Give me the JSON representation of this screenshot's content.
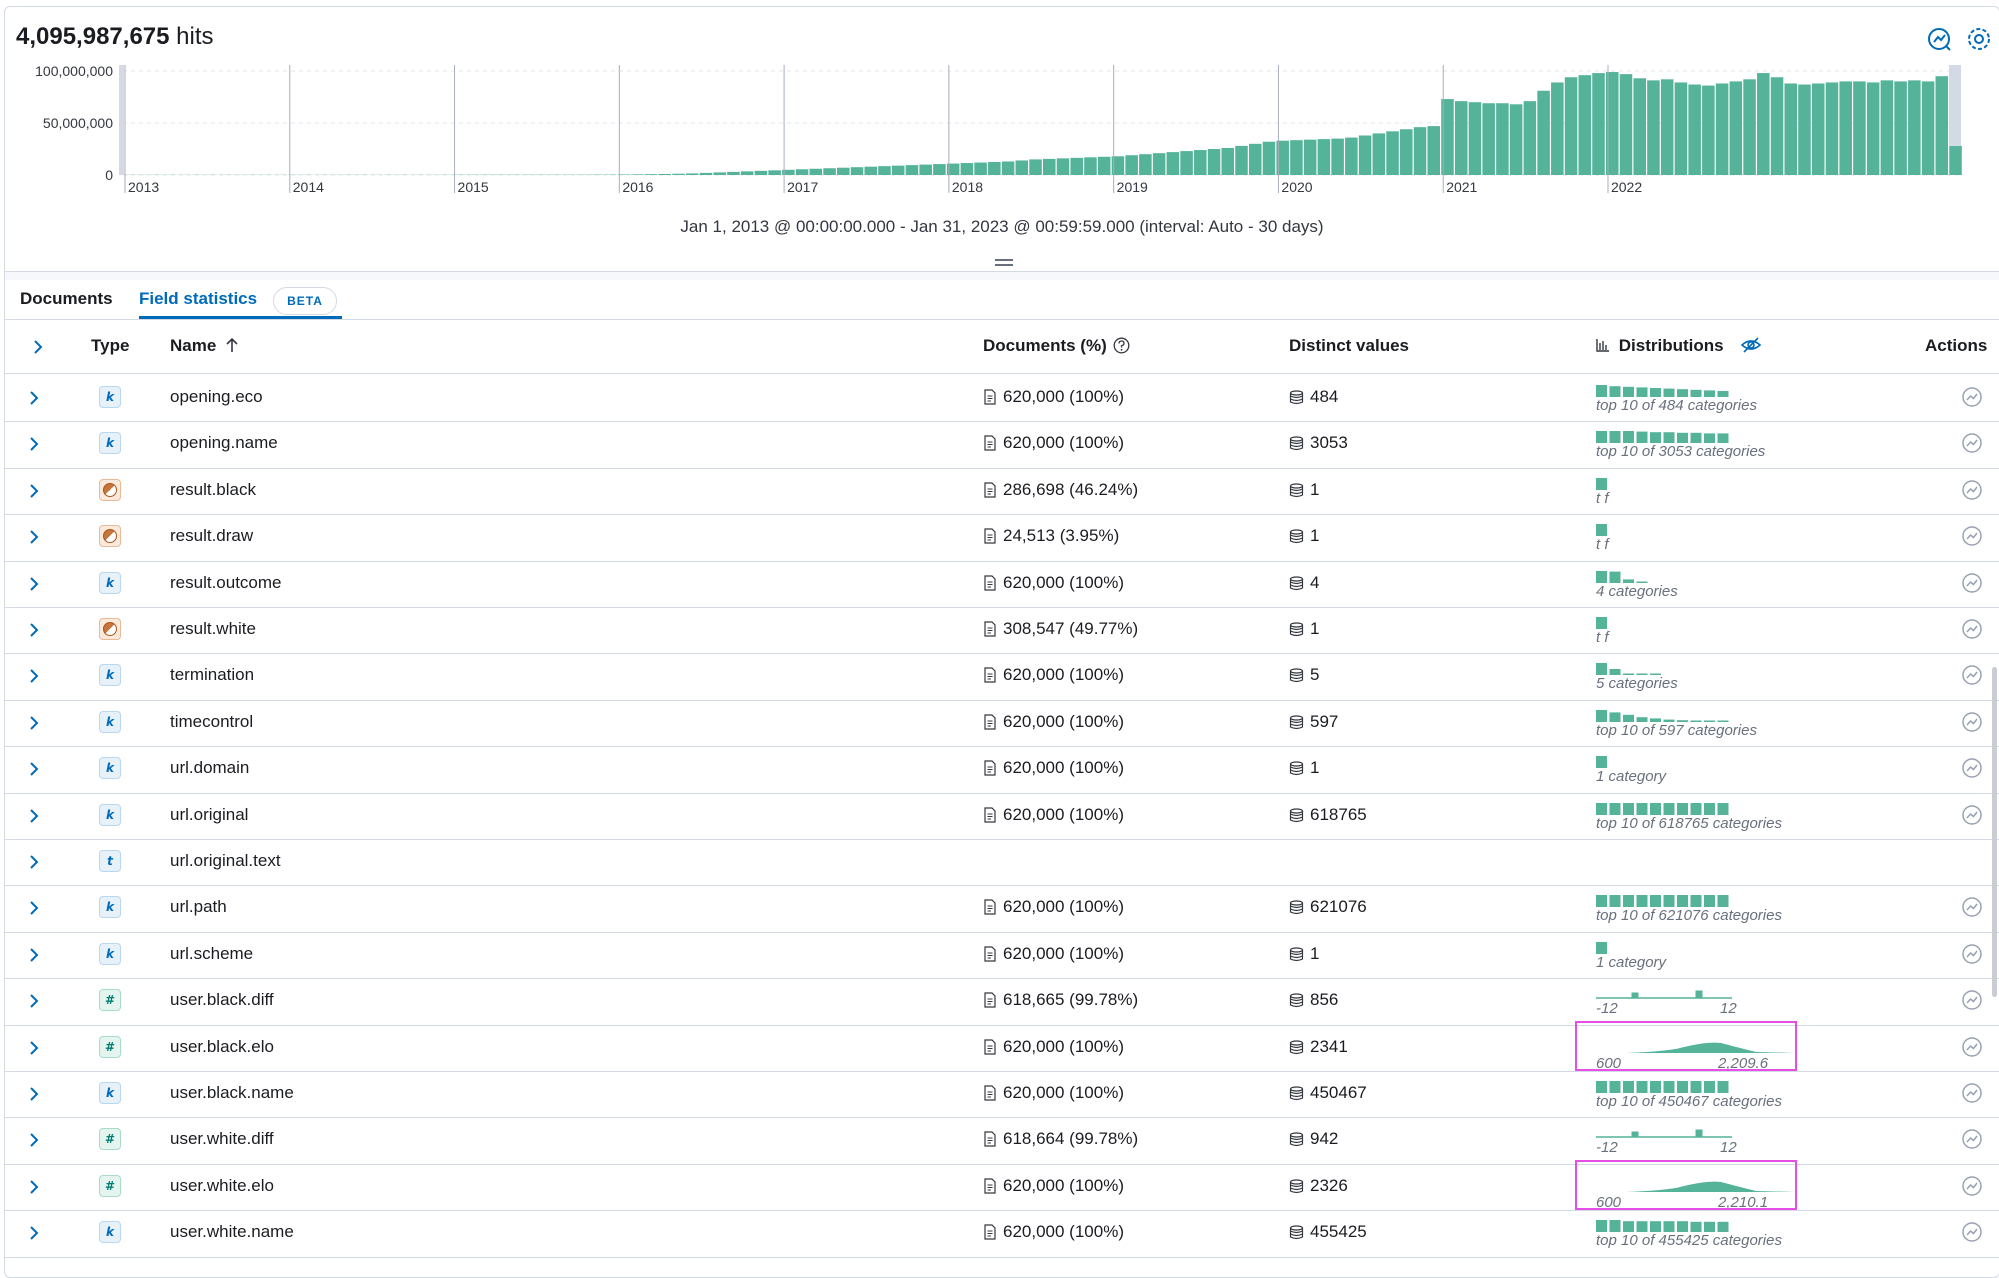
{
  "header": {
    "hits_count": "4,095,987,675",
    "hits_label": "hits"
  },
  "histogram": {
    "y_ticks": [
      "100,000,000",
      "50,000,000",
      "0"
    ],
    "x_ticks": [
      "2013",
      "2014",
      "2015",
      "2016",
      "2017",
      "2018",
      "2019",
      "2020",
      "2021",
      "2022"
    ],
    "bar_color": "#54b399",
    "monthly_values": [
      200000,
      200000,
      200000,
      200000,
      200000,
      200000,
      200000,
      200000,
      200000,
      200000,
      200000,
      200000,
      200000,
      200000,
      200000,
      200000,
      200000,
      200000,
      200000,
      200000,
      200000,
      200000,
      200000,
      200000,
      300000,
      300000,
      300000,
      300000,
      300000,
      300000,
      300000,
      300000,
      300000,
      300000,
      400000,
      400000,
      500000,
      600000,
      800000,
      1000000,
      1200000,
      1500000,
      2000000,
      2500000,
      3000000,
      3500000,
      4000000,
      4500000,
      5000000,
      5500000,
      6000000,
      6500000,
      7000000,
      7500000,
      8000000,
      8500000,
      9000000,
      9500000,
      10000000,
      10500000,
      11000000,
      11500000,
      12000000,
      12500000,
      13000000,
      14000000,
      15000000,
      15500000,
      16000000,
      16500000,
      17000000,
      17500000,
      18000000,
      19000000,
      20000000,
      21000000,
      22000000,
      23000000,
      24000000,
      25000000,
      26000000,
      28000000,
      30000000,
      32000000,
      33000000,
      33500000,
      34000000,
      34500000,
      35000000,
      36000000,
      38000000,
      40000000,
      42000000,
      44000000,
      46000000,
      47000000,
      73000000,
      71000000,
      70000000,
      69000000,
      69000000,
      68000000,
      71000000,
      81000000,
      89000000,
      94000000,
      96000000,
      98000000,
      99000000,
      97000000,
      93000000,
      91000000,
      92000000,
      89000000,
      87000000,
      86000000,
      88000000,
      90000000,
      92000000,
      98000000,
      94000000,
      88000000,
      87000000,
      88000000,
      89000000,
      90000000,
      90000000,
      89000000,
      91000000,
      90000000,
      91000000,
      90000000,
      95000000,
      28000000
    ],
    "time_range": "Jan 1, 2013 @ 00:00:00.000 - Jan 31, 2023 @ 00:59:59.000 (interval: Auto - 30 days)"
  },
  "tabs": {
    "documents": "Documents",
    "field_statistics": "Field statistics",
    "beta": "BETA"
  },
  "columns": {
    "type": "Type",
    "name": "Name",
    "documents": "Documents (%)",
    "distinct": "Distinct values",
    "distributions": "Distributions",
    "actions": "Actions"
  },
  "colors": {
    "accent": "#006bb8",
    "viz": "#54b399",
    "highlight": "#e54fe5"
  },
  "rows": [
    {
      "type": "k",
      "name": "opening.eco",
      "docs": "620,000 (100%)",
      "distinct": "484",
      "viz": "top10",
      "caption": "top 10 of 484 categories",
      "bars": [
        1,
        0.9,
        0.85,
        0.8,
        0.75,
        0.7,
        0.65,
        0.6,
        0.55,
        0.5
      ],
      "hl": false
    },
    {
      "type": "k",
      "name": "opening.name",
      "docs": "620,000 (100%)",
      "distinct": "3053",
      "viz": "top10",
      "caption": "top 10 of 3053 categories",
      "bars": [
        1,
        1,
        1,
        0.95,
        0.9,
        0.9,
        0.85,
        0.85,
        0.8,
        0.8
      ],
      "hl": false
    },
    {
      "type": "b",
      "name": "result.black",
      "docs": "286,698 (46.24%)",
      "distinct": "1",
      "viz": "bool",
      "caption": "t  f",
      "bars": [
        1
      ],
      "hl": false
    },
    {
      "type": "b",
      "name": "result.draw",
      "docs": "24,513 (3.95%)",
      "distinct": "1",
      "viz": "bool",
      "caption": "t  f",
      "bars": [
        1
      ],
      "hl": false
    },
    {
      "type": "k",
      "name": "result.outcome",
      "docs": "620,000 (100%)",
      "distinct": "4",
      "viz": "cats",
      "caption": "4 categories",
      "bars": [
        1,
        0.95,
        0.3,
        0.1
      ],
      "hl": false
    },
    {
      "type": "b",
      "name": "result.white",
      "docs": "308,547 (49.77%)",
      "distinct": "1",
      "viz": "bool",
      "caption": "t  f",
      "bars": [
        1
      ],
      "hl": false
    },
    {
      "type": "k",
      "name": "termination",
      "docs": "620,000 (100%)",
      "distinct": "5",
      "viz": "cats",
      "caption": "5 categories",
      "bars": [
        1,
        0.5,
        0.05,
        0.05,
        0.05
      ],
      "hl": false
    },
    {
      "type": "k",
      "name": "timecontrol",
      "docs": "620,000 (100%)",
      "distinct": "597",
      "viz": "top10",
      "caption": "top 10 of 597 categories",
      "bars": [
        1,
        0.8,
        0.6,
        0.4,
        0.3,
        0.2,
        0.15,
        0.1,
        0.08,
        0.05
      ],
      "hl": false
    },
    {
      "type": "k",
      "name": "url.domain",
      "docs": "620,000 (100%)",
      "distinct": "1",
      "viz": "cats",
      "caption": "1 category",
      "bars": [
        1
      ],
      "hl": false
    },
    {
      "type": "k",
      "name": "url.original",
      "docs": "620,000 (100%)",
      "distinct": "618765",
      "viz": "top10",
      "caption": "top 10 of 618765 categories",
      "bars": [
        1,
        1,
        1,
        1,
        1,
        1,
        1,
        1,
        1,
        1
      ],
      "hl": false
    },
    {
      "type": "t",
      "name": "url.original.text",
      "docs": "",
      "distinct": "",
      "viz": "none",
      "caption": "",
      "bars": [],
      "hl": false
    },
    {
      "type": "k",
      "name": "url.path",
      "docs": "620,000 (100%)",
      "distinct": "621076",
      "viz": "top10",
      "caption": "top 10 of 621076 categories",
      "bars": [
        1,
        1,
        1,
        1,
        1,
        1,
        1,
        1,
        1,
        1
      ],
      "hl": false
    },
    {
      "type": "k",
      "name": "url.scheme",
      "docs": "620,000 (100%)",
      "distinct": "1",
      "viz": "cats",
      "caption": "1 category",
      "bars": [
        1
      ],
      "hl": false
    },
    {
      "type": "n",
      "name": "user.black.diff",
      "docs": "618,665 (99.78%)",
      "distinct": "856",
      "viz": "spike",
      "caption": "-12",
      "caption_right": "12",
      "hl": false
    },
    {
      "type": "n",
      "name": "user.black.elo",
      "docs": "620,000 (100%)",
      "distinct": "2341",
      "viz": "curve",
      "caption": "600",
      "caption_right": "2,209.6",
      "hl": true
    },
    {
      "type": "k",
      "name": "user.black.name",
      "docs": "620,000 (100%)",
      "distinct": "450467",
      "viz": "top10",
      "caption": "top 10 of 450467 categories",
      "bars": [
        1,
        1,
        1,
        1,
        1,
        1,
        1,
        1,
        1,
        1
      ],
      "hl": false
    },
    {
      "type": "n",
      "name": "user.white.diff",
      "docs": "618,664 (99.78%)",
      "distinct": "942",
      "viz": "spike",
      "caption": "-12",
      "caption_right": "12",
      "hl": false
    },
    {
      "type": "n",
      "name": "user.white.elo",
      "docs": "620,000 (100%)",
      "distinct": "2326",
      "viz": "curve",
      "caption": "600",
      "caption_right": "2,210.1",
      "hl": true
    },
    {
      "type": "k",
      "name": "user.white.name",
      "docs": "620,000 (100%)",
      "distinct": "455425",
      "viz": "top10",
      "caption": "top 10 of 455425 categories",
      "bars": [
        1,
        1,
        0.9,
        0.9,
        0.9,
        0.9,
        0.9,
        0.85,
        0.85,
        0.85
      ],
      "hl": false
    }
  ]
}
